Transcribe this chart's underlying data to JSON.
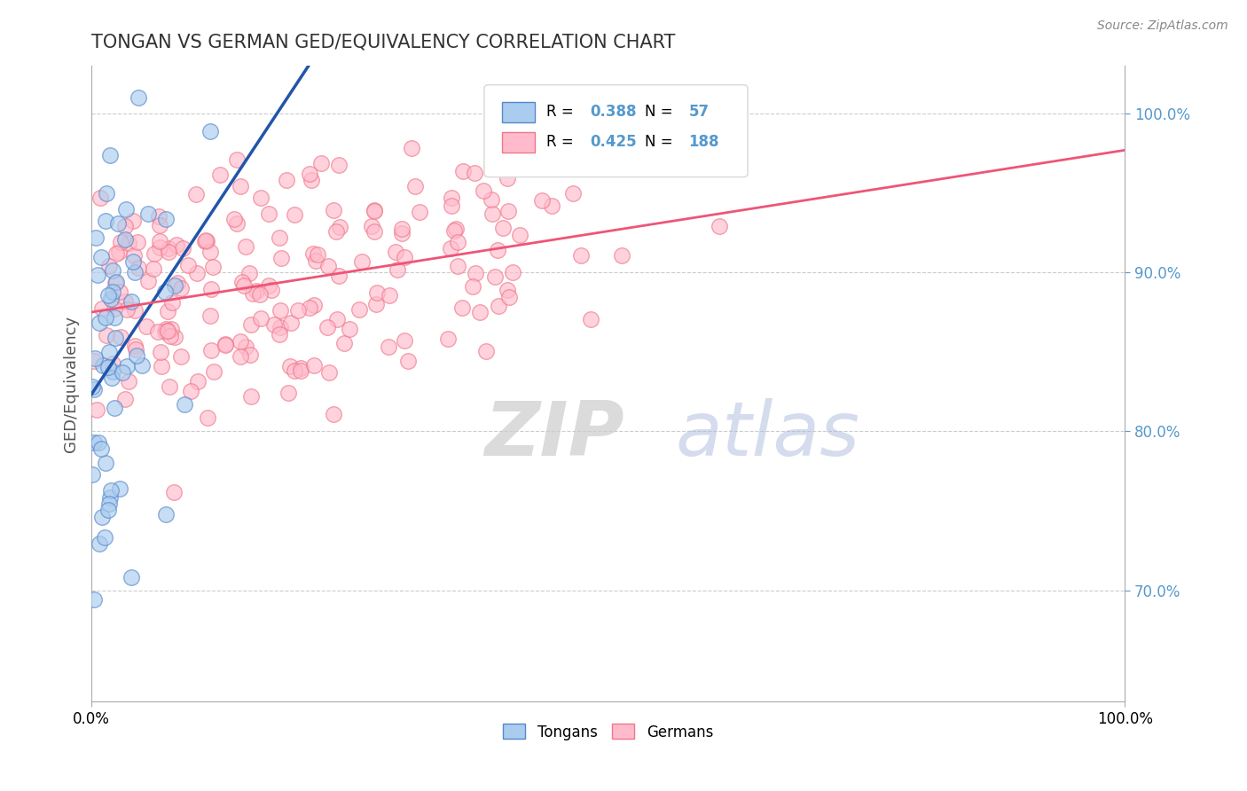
{
  "title": "TONGAN VS GERMAN GED/EQUIVALENCY CORRELATION CHART",
  "source": "Source: ZipAtlas.com",
  "ylabel": "GED/Equivalency",
  "x_tick_labels": [
    "0.0%",
    "100.0%"
  ],
  "y_tick_labels_right": [
    "70.0%",
    "80.0%",
    "90.0%",
    "100.0%"
  ],
  "legend_labels": [
    "Tongans",
    "Germans"
  ],
  "tongan_R": 0.388,
  "tongan_N": 57,
  "german_R": 0.425,
  "german_N": 188,
  "tongan_color": "#AACCEE",
  "tongan_edge_color": "#5588CC",
  "tongan_line_color": "#2255AA",
  "german_color": "#FFBBCC",
  "german_edge_color": "#EE7788",
  "german_line_color": "#EE5577",
  "background_color": "#FFFFFF",
  "grid_color": "#CCCCCC",
  "watermark_zip": "ZIP",
  "watermark_atlas": "atlas",
  "title_color": "#333333",
  "axis_label_color": "#555555",
  "right_tick_color": "#5599CC",
  "xlim": [
    0,
    1
  ],
  "ylim": [
    0.63,
    1.03
  ]
}
